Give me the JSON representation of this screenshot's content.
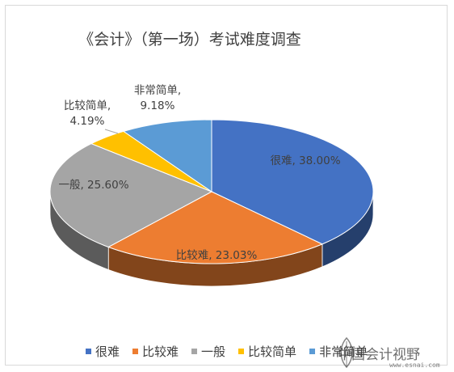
{
  "chart_data": {
    "type": "pie",
    "style": "3d",
    "title": "《会计》（第一场）考试难度调查",
    "categories": [
      "很难",
      "比较难",
      "一般",
      "比较简单",
      "非常简单"
    ],
    "values": [
      38.0,
      23.03,
      25.6,
      4.19,
      9.18
    ],
    "data_labels": [
      "很难, 38.00%",
      "比较难, 23.03%",
      "一般, 25.60%",
      "比较简单,\n4.19%",
      "非常简单,\n9.18%"
    ],
    "colors": [
      "#4472C4",
      "#ED7D31",
      "#A5A5A5",
      "#FFC000",
      "#5B9BD5"
    ],
    "legend_position": "bottom"
  },
  "watermark": {
    "text": "中国会计视野",
    "url": "www.esnai.com"
  }
}
